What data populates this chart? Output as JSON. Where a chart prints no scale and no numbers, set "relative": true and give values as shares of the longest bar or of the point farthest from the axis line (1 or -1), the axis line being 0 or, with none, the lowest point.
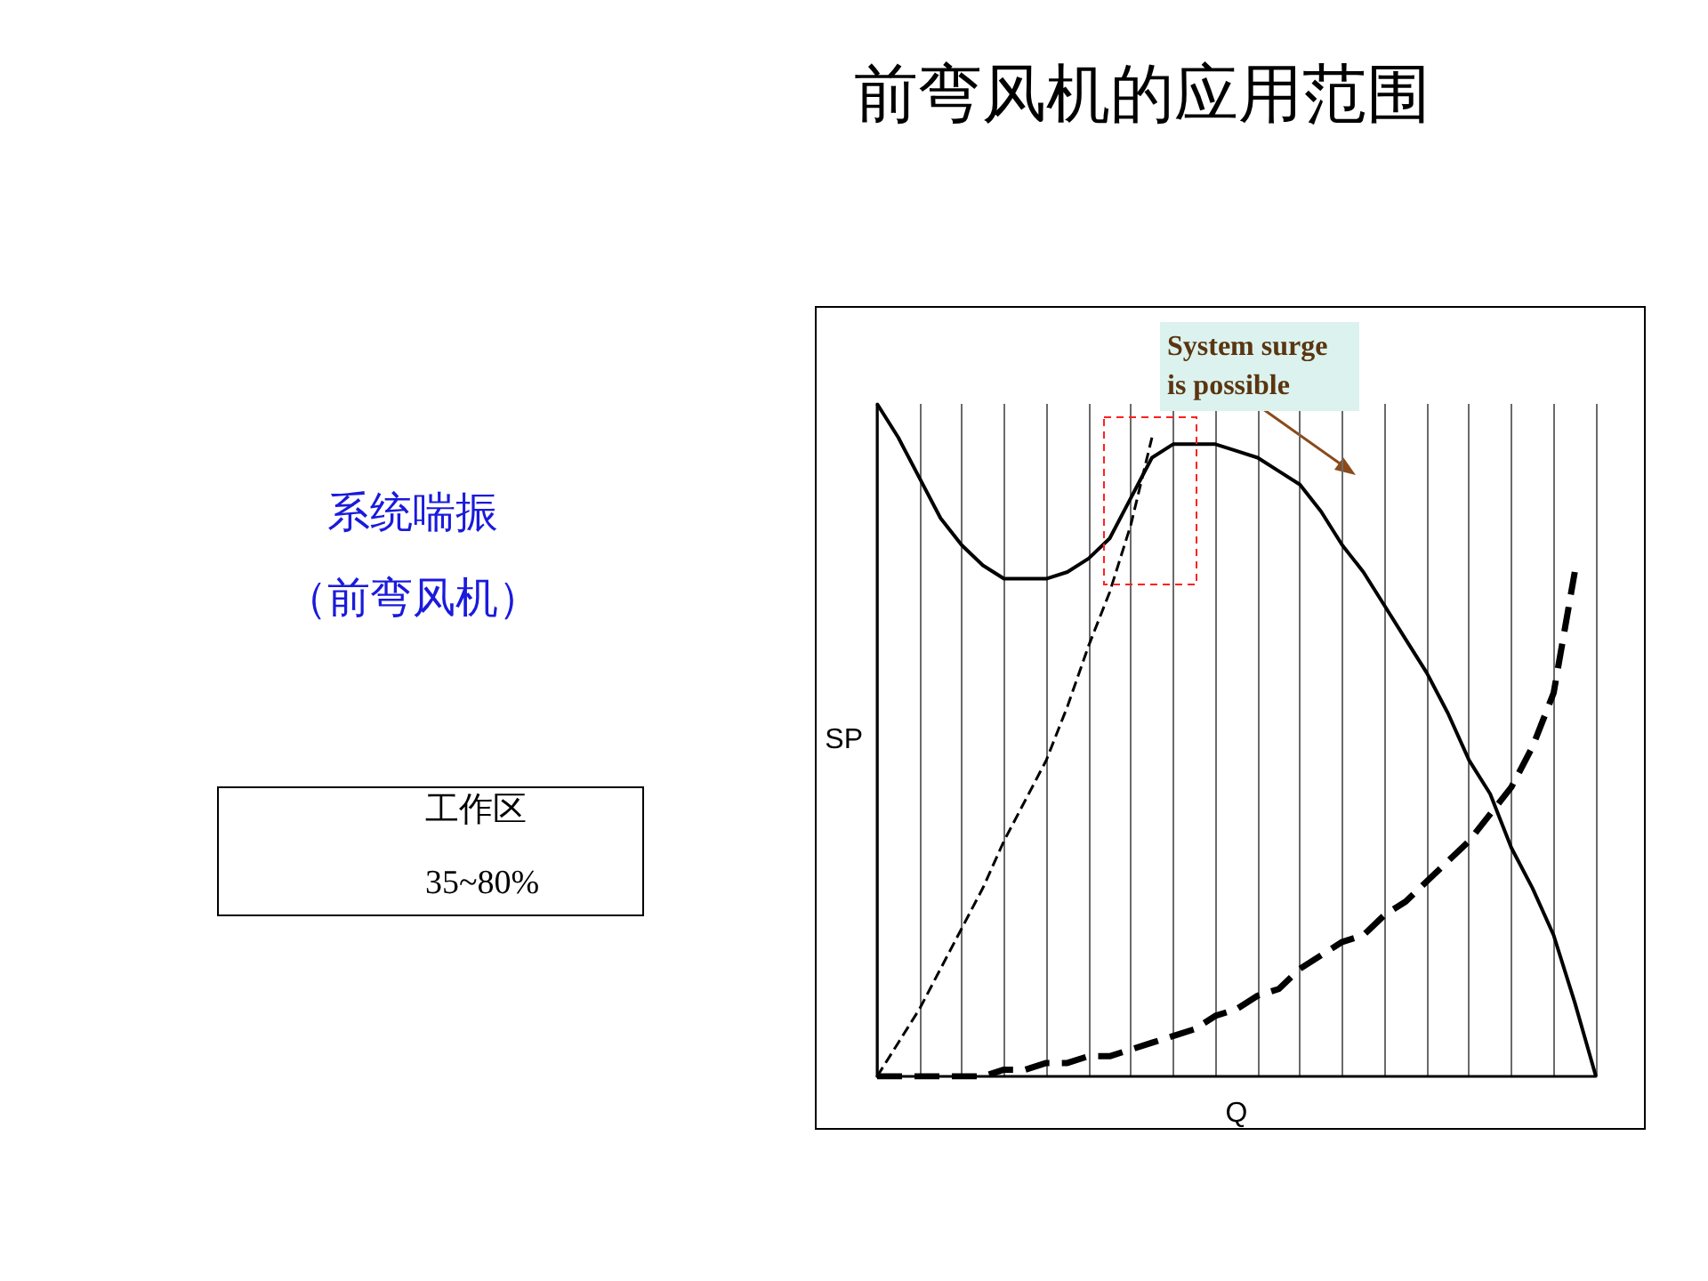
{
  "chart_data": {
    "type": "line",
    "title": "前弯风机的应用范围",
    "xlabel": "Q",
    "ylabel": "SP",
    "relative": true,
    "grid": true,
    "marker": "none",
    "categories": [
      null,
      null,
      null,
      null,
      null,
      null,
      null,
      null,
      null,
      null,
      null,
      null,
      null,
      null,
      null,
      null,
      null,
      null,
      null,
      null,
      null,
      null,
      null,
      null,
      null,
      null,
      null,
      null,
      null,
      null,
      null,
      null,
      null,
      null,
      null
    ],
    "annotations": [
      "系统喘振",
      "（前弯风机）",
      "工作区",
      "35~80%",
      "System surge is possible"
    ],
    "series": [
      {
        "color": "#000000",
        "line_style": "solid",
        "values": [
          1,
          0.95,
          0.89,
          0.83,
          0.79,
          0.76,
          0.74,
          0.74,
          0.74,
          0.75,
          0.77,
          0.8,
          0.86,
          0.92,
          0.94,
          0.94,
          0.94,
          0.93,
          0.92,
          0.9,
          0.88,
          0.84,
          0.79,
          0.75,
          0.7,
          0.65,
          0.6,
          0.54,
          0.47,
          0.42,
          0.34,
          0.28,
          0.21,
          0.11,
          0
        ]
      },
      {
        "color": "#000000",
        "line_style": "dashed",
        "values": [
          0,
          0.05,
          0.1,
          0.16,
          0.22,
          0.28,
          0.35,
          0.41,
          0.47,
          0.55,
          0.64,
          0.72,
          0.82,
          0.95,
          null,
          null,
          null,
          null,
          null,
          null,
          null,
          null,
          null,
          null,
          null,
          null,
          null,
          null,
          null,
          null,
          null,
          null,
          null,
          null,
          null
        ]
      },
      {
        "color": "#000000",
        "line_style": "dashed",
        "values": [
          0,
          0,
          0,
          0,
          0,
          0,
          0.01,
          0.01,
          0.02,
          0.02,
          0.03,
          0.03,
          0.04,
          0.05,
          0.06,
          0.07,
          0.09,
          0.1,
          0.12,
          0.13,
          0.16,
          0.18,
          0.2,
          0.21,
          0.24,
          0.26,
          0.29,
          0.32,
          0.35,
          0.39,
          0.43,
          0.49,
          0.57,
          0.75,
          null
        ]
      }
    ]
  }
}
